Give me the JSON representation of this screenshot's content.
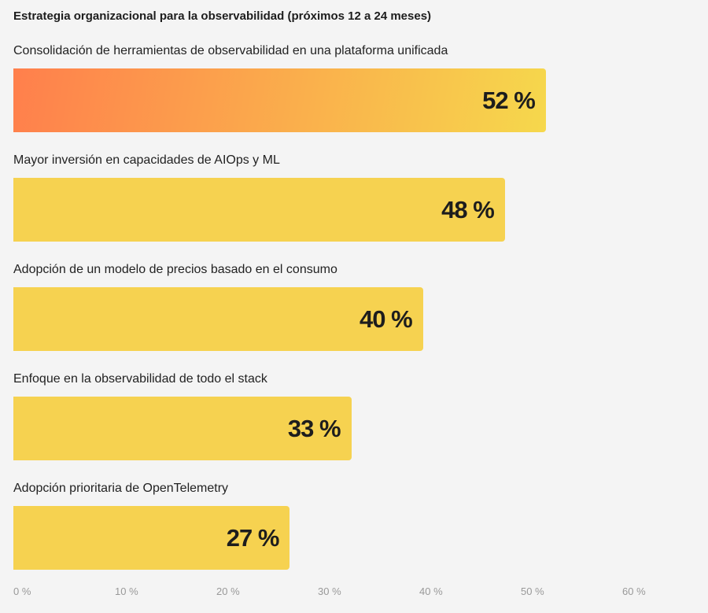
{
  "chart_data": {
    "type": "bar",
    "orientation": "horizontal",
    "title": "Estrategia organizacional para la observabilidad (próximos 12 a 24 meses)",
    "categories": [
      "Consolidación de herramientas de observabilidad en una plataforma unificada",
      "Mayor inversión en capacidades de AIOps y ML",
      "Adopción de un modelo de precios basado en el consumo",
      "Enfoque en la observabilidad de todo el stack",
      "Adopción prioritaria de OpenTelemetry"
    ],
    "values": [
      52,
      48,
      40,
      33,
      27
    ],
    "value_labels": [
      "52 %",
      "48 %",
      "40 %",
      "33 %",
      "27 %"
    ],
    "xlim": [
      0,
      60
    ],
    "ticks": [
      "0 %",
      "10 %",
      "20 %",
      "30 %",
      "40 %",
      "50 %",
      "60 %"
    ],
    "grid": false,
    "colors": {
      "bar": "#f6d250",
      "highlight_gradient": [
        "#ff7f4c",
        "#f6d84c"
      ],
      "background": "#f4f4f4"
    }
  }
}
